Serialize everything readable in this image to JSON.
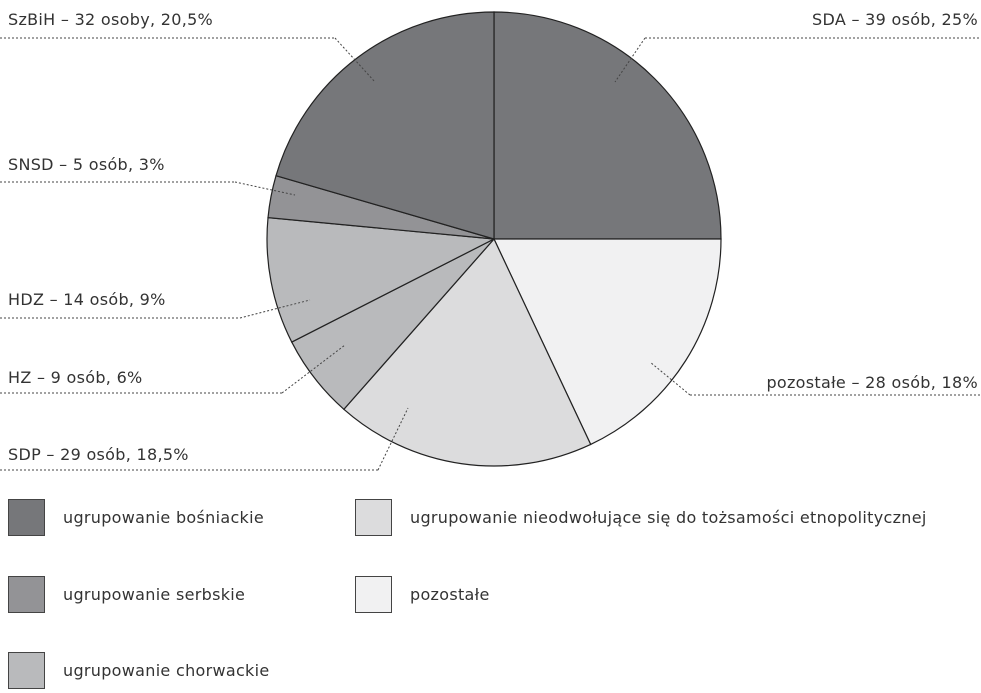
{
  "chart_data": {
    "type": "pie",
    "values": [
      25,
      18,
      18.5,
      6,
      9,
      3,
      20.5
    ],
    "value_labels": [
      "SDA – 39 osób, 25%",
      "pozostałe – 28 osób, 18%",
      "SDP – 29 osób, 18,5%",
      "HZ – 9 osób, 6%",
      "HDZ – 14 osób, 9%",
      "SNSD – 5 osób, 3%",
      "SzBiH – 32 osoby, 20,5%"
    ],
    "colors": [
      "#76777a",
      "#f1f1f2",
      "#dcdcdd",
      "#b9babc",
      "#b9babc",
      "#939396",
      "#76777a"
    ],
    "legend": [
      {
        "name": "ugrupowanie bośniackie",
        "color": "#76777a"
      },
      {
        "name": "ugrupowanie serbskie",
        "color": "#939396"
      },
      {
        "name": "ugrupowanie chorwackie",
        "color": "#b9babc"
      },
      {
        "name": "ugrupowanie nieodwołujące się do tożsamości etnopolitycznej",
        "color": "#dcdcdd"
      },
      {
        "name": "pozostałe",
        "color": "#f1f1f2"
      }
    ]
  }
}
